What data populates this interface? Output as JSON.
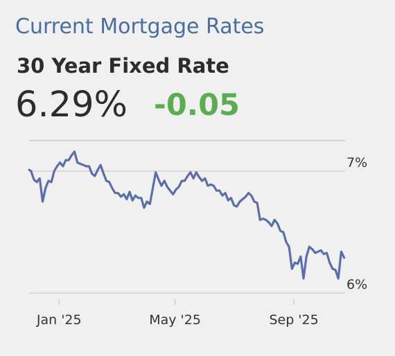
{
  "header": {
    "title": "Current Mortgage Rates",
    "rate_name": "30 Year Fixed Rate",
    "rate_value": "6.29%",
    "rate_change": "-0.05"
  },
  "colors": {
    "title": "#4a6e9b",
    "rate_text": "#2c2c2c",
    "change_negative": "#5dab52",
    "line": "#5b6ea8",
    "grid": "#c8c8c8",
    "background": "#f0f0f0"
  },
  "chart_data": {
    "type": "line",
    "title": "",
    "xlabel": "",
    "ylabel": "",
    "ylim": [
      5.95,
      7.25
    ],
    "xlim": [
      "2024-12-01",
      "2025-10-24"
    ],
    "x_ticks": [
      {
        "date": "2025-01-01",
        "label": "Jan '25"
      },
      {
        "date": "2025-05-01",
        "label": "May '25"
      },
      {
        "date": "2025-09-01",
        "label": "Sep '25"
      }
    ],
    "y_ticks": [
      {
        "value": 7,
        "label": "7%"
      },
      {
        "value": 6,
        "label": "6%"
      }
    ],
    "grid": true,
    "legend": "none",
    "series": [
      {
        "x": [
          "2024-12-01",
          "2024-12-03",
          "2024-12-06",
          "2024-12-09",
          "2024-12-12",
          "2024-12-15",
          "2024-12-18",
          "2024-12-21",
          "2024-12-24",
          "2024-12-27",
          "2024-12-30",
          "2025-01-02",
          "2025-01-05",
          "2025-01-08",
          "2025-01-11",
          "2025-01-14",
          "2025-01-17",
          "2025-01-20",
          "2025-01-23",
          "2025-01-26",
          "2025-01-29",
          "2025-02-01",
          "2025-02-04",
          "2025-02-07",
          "2025-02-10",
          "2025-02-13",
          "2025-02-16",
          "2025-02-19",
          "2025-02-22",
          "2025-02-25",
          "2025-02-28",
          "2025-03-03",
          "2025-03-06",
          "2025-03-09",
          "2025-03-12",
          "2025-03-15",
          "2025-03-18",
          "2025-03-21",
          "2025-03-24",
          "2025-03-27",
          "2025-03-30",
          "2025-04-02",
          "2025-04-05",
          "2025-04-08",
          "2025-04-11",
          "2025-04-14",
          "2025-04-17",
          "2025-04-20",
          "2025-04-23",
          "2025-04-26",
          "2025-04-29",
          "2025-05-02",
          "2025-05-05",
          "2025-05-08",
          "2025-05-11",
          "2025-05-14",
          "2025-05-17",
          "2025-05-20",
          "2025-05-23",
          "2025-05-26",
          "2025-05-29",
          "2025-06-01",
          "2025-06-04",
          "2025-06-07",
          "2025-06-10",
          "2025-06-13",
          "2025-06-16",
          "2025-06-19",
          "2025-06-22",
          "2025-06-25",
          "2025-06-28",
          "2025-07-01",
          "2025-07-04",
          "2025-07-07",
          "2025-07-10",
          "2025-07-13",
          "2025-07-16",
          "2025-07-19",
          "2025-07-22",
          "2025-07-25",
          "2025-07-28",
          "2025-07-31",
          "2025-08-03",
          "2025-08-06",
          "2025-08-09",
          "2025-08-12",
          "2025-08-15",
          "2025-08-18",
          "2025-08-21",
          "2025-08-24",
          "2025-08-27",
          "2025-08-30",
          "2025-09-02",
          "2025-09-05",
          "2025-09-08",
          "2025-09-11",
          "2025-09-14",
          "2025-09-17",
          "2025-09-20",
          "2025-09-23",
          "2025-09-26",
          "2025-09-29",
          "2025-10-02",
          "2025-10-05",
          "2025-10-08",
          "2025-10-11",
          "2025-10-14",
          "2025-10-17",
          "2025-10-20",
          "2025-10-23"
        ],
        "values": [
          7.01,
          7.0,
          6.93,
          6.91,
          6.94,
          6.75,
          6.86,
          6.92,
          6.91,
          7.0,
          7.04,
          7.07,
          7.04,
          7.09,
          7.09,
          7.13,
          7.16,
          7.07,
          7.06,
          7.05,
          7.04,
          7.04,
          6.98,
          6.96,
          7.01,
          7.05,
          6.98,
          6.92,
          6.91,
          6.86,
          6.82,
          6.82,
          6.79,
          6.81,
          6.77,
          6.83,
          6.76,
          6.8,
          6.78,
          6.78,
          6.7,
          6.75,
          6.73,
          6.86,
          6.99,
          6.93,
          6.88,
          6.92,
          6.87,
          6.84,
          6.81,
          6.85,
          6.87,
          6.92,
          6.92,
          6.96,
          6.99,
          6.94,
          6.99,
          6.95,
          6.92,
          6.94,
          6.88,
          6.89,
          6.88,
          6.84,
          6.84,
          6.8,
          6.82,
          6.76,
          6.78,
          6.72,
          6.71,
          6.75,
          6.77,
          6.79,
          6.82,
          6.8,
          6.75,
          6.74,
          6.6,
          6.61,
          6.6,
          6.58,
          6.55,
          6.6,
          6.57,
          6.51,
          6.5,
          6.42,
          6.38,
          6.2,
          6.25,
          6.24,
          6.3,
          6.12,
          6.3,
          6.38,
          6.36,
          6.33,
          6.34,
          6.35,
          6.32,
          6.33,
          6.25,
          6.2,
          6.19,
          6.12,
          6.34,
          6.29
        ]
      }
    ]
  }
}
